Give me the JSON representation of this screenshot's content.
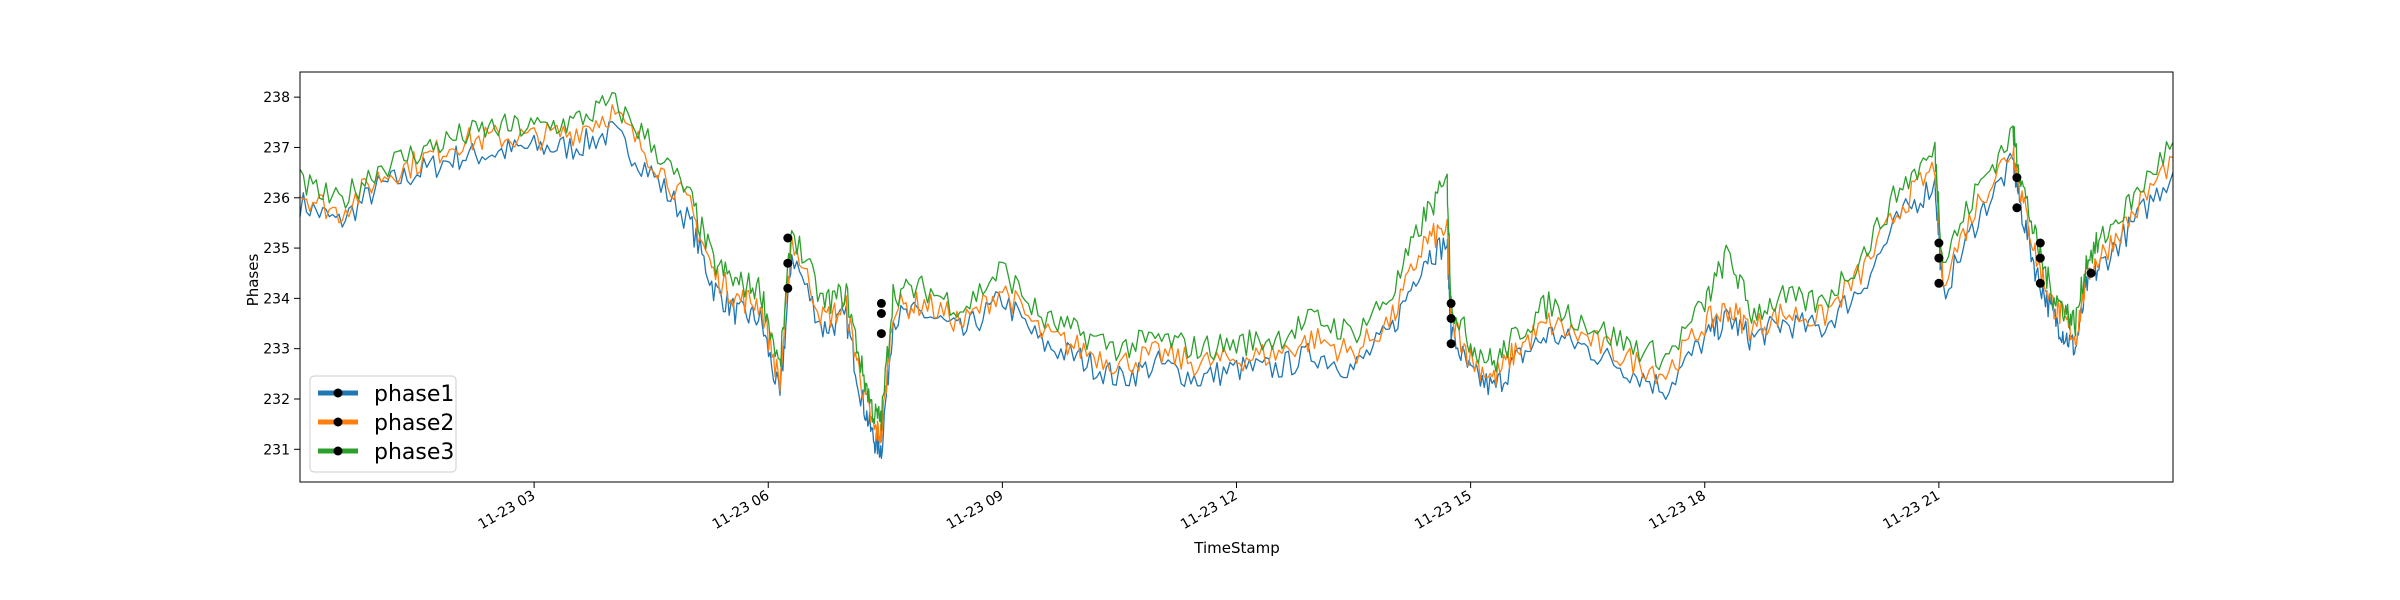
{
  "chart_data": {
    "type": "line",
    "xlabel": "TimeStamp",
    "ylabel": "Phases",
    "xlim": [
      0.0,
      24.0
    ],
    "ylim": [
      230.35,
      238.5
    ],
    "x_ticks": [
      {
        "value": 3,
        "label": "11-23 03"
      },
      {
        "value": 6,
        "label": "11-23 06"
      },
      {
        "value": 9,
        "label": "11-23 09"
      },
      {
        "value": 12,
        "label": "11-23 12"
      },
      {
        "value": 15,
        "label": "11-23 15"
      },
      {
        "value": 18,
        "label": "11-23 18"
      },
      {
        "value": 21,
        "label": "11-23 21"
      }
    ],
    "y_ticks": [
      231,
      232,
      233,
      234,
      235,
      236,
      237,
      238
    ],
    "legend_position": "lower-left",
    "x_hours": [
      0.0,
      0.5,
      1.0,
      1.5,
      2.0,
      2.5,
      3.0,
      3.5,
      4.0,
      4.5,
      5.0,
      5.3,
      5.6,
      5.9,
      6.15,
      6.3,
      6.7,
      7.0,
      7.2,
      7.35,
      7.45,
      7.6,
      8.0,
      8.5,
      9.0,
      9.5,
      10.0,
      10.5,
      11.0,
      11.5,
      12.0,
      12.5,
      13.0,
      13.5,
      14.0,
      14.4,
      14.7,
      14.75,
      15.0,
      15.3,
      15.6,
      16.0,
      16.5,
      17.0,
      17.5,
      18.0,
      18.3,
      18.6,
      19.0,
      19.5,
      20.0,
      20.5,
      20.95,
      21.05,
      21.5,
      21.95,
      22.05,
      22.25,
      22.45,
      22.6,
      22.75,
      22.9,
      23.1,
      23.5,
      24.0
    ],
    "series": [
      {
        "name": "phase1",
        "color": "#1f77b4",
        "linewidth": 2,
        "values": [
          235.9,
          235.5,
          236.2,
          236.5,
          236.8,
          236.9,
          237.0,
          237.0,
          237.3,
          236.5,
          235.5,
          234.2,
          233.7,
          233.6,
          232.0,
          234.9,
          233.4,
          233.6,
          232.0,
          231.2,
          231.0,
          233.6,
          233.7,
          233.3,
          234.0,
          233.1,
          232.8,
          232.4,
          232.7,
          232.4,
          232.6,
          232.6,
          232.9,
          232.6,
          233.4,
          234.8,
          235.1,
          233.3,
          232.5,
          232.2,
          232.8,
          233.3,
          233.0,
          232.6,
          232.2,
          233.2,
          233.6,
          233.2,
          233.5,
          233.4,
          234.2,
          235.6,
          236.3,
          234.1,
          235.6,
          236.7,
          235.8,
          234.5,
          233.7,
          233.3,
          233.0,
          234.3,
          234.7,
          235.5,
          236.5
        ]
      },
      {
        "name": "phase2",
        "color": "#ff7f0e",
        "linewidth": 2,
        "values": [
          236.1,
          235.7,
          236.4,
          236.7,
          237.1,
          237.2,
          237.2,
          237.3,
          237.7,
          236.8,
          235.8,
          234.5,
          234.0,
          233.9,
          232.3,
          235.2,
          233.6,
          233.8,
          232.3,
          231.4,
          231.3,
          233.8,
          233.9,
          233.5,
          234.2,
          233.3,
          233.0,
          232.7,
          232.9,
          232.7,
          232.8,
          232.9,
          233.2,
          232.9,
          233.6,
          235.1,
          235.4,
          233.6,
          232.8,
          232.4,
          233.0,
          233.5,
          233.2,
          232.8,
          232.5,
          233.5,
          233.8,
          233.4,
          233.7,
          233.6,
          234.5,
          235.8,
          236.6,
          234.4,
          235.9,
          237.0,
          236.1,
          234.8,
          233.9,
          233.6,
          233.2,
          234.5,
          234.9,
          235.7,
          236.8
        ]
      },
      {
        "name": "phase3",
        "color": "#2ca02c",
        "linewidth": 2,
        "values": [
          236.3,
          235.9,
          236.6,
          236.9,
          237.2,
          237.4,
          237.4,
          237.5,
          237.9,
          237.1,
          236.0,
          234.7,
          234.3,
          234.2,
          232.6,
          235.4,
          233.9,
          234.1,
          232.6,
          231.7,
          231.6,
          234.1,
          234.2,
          233.8,
          234.6,
          233.6,
          233.3,
          233.0,
          233.2,
          233.0,
          233.1,
          233.2,
          233.6,
          233.3,
          234.1,
          235.6,
          236.3,
          233.9,
          233.1,
          232.7,
          233.3,
          233.9,
          233.5,
          233.1,
          232.8,
          233.9,
          234.9,
          233.7,
          234.0,
          233.9,
          234.8,
          236.2,
          236.9,
          234.7,
          236.2,
          237.3,
          236.4,
          235.1,
          234.1,
          233.8,
          233.5,
          234.8,
          235.2,
          236.0,
          237.1
        ]
      }
    ],
    "markers": [
      {
        "x": 6.25,
        "y": 235.2
      },
      {
        "x": 6.25,
        "y": 234.7
      },
      {
        "x": 6.25,
        "y": 234.2
      },
      {
        "x": 7.45,
        "y": 233.9
      },
      {
        "x": 7.45,
        "y": 233.7
      },
      {
        "x": 7.45,
        "y": 233.3
      },
      {
        "x": 14.75,
        "y": 233.9
      },
      {
        "x": 14.75,
        "y": 233.6
      },
      {
        "x": 14.75,
        "y": 233.1
      },
      {
        "x": 21.0,
        "y": 235.1
      },
      {
        "x": 21.0,
        "y": 234.8
      },
      {
        "x": 21.0,
        "y": 234.3
      },
      {
        "x": 22.0,
        "y": 236.4
      },
      {
        "x": 22.0,
        "y": 235.8
      },
      {
        "x": 22.3,
        "y": 235.1
      },
      {
        "x": 22.3,
        "y": 234.8
      },
      {
        "x": 22.3,
        "y": 234.3
      },
      {
        "x": 22.95,
        "y": 234.5
      }
    ]
  }
}
